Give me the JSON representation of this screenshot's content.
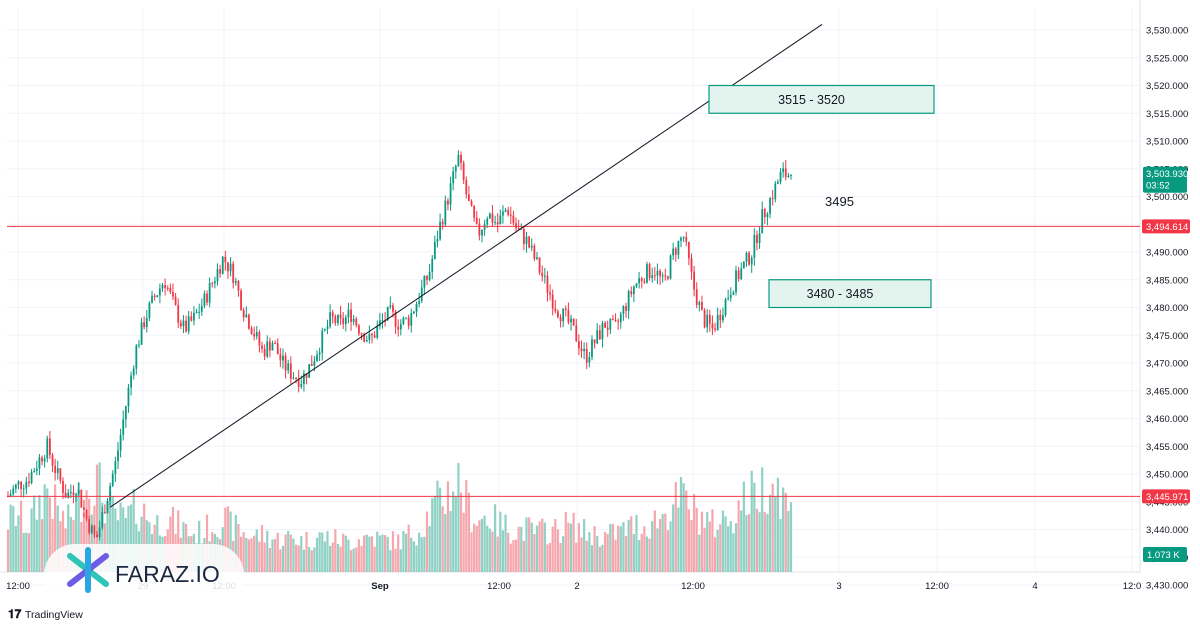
{
  "chart_data": {
    "type": "candlestick",
    "price_axis": {
      "ticks": [
        "3,530.000",
        "3,525.000",
        "3,520.000",
        "3,515.000",
        "3,510.000",
        "3,505.000",
        "3,500.000",
        "3,495.000",
        "3,490.000",
        "3,485.000",
        "3,480.000",
        "3,475.000",
        "3,470.000",
        "3,465.000",
        "3,460.000",
        "3,455.000",
        "3,450.000",
        "3,445.000",
        "3,440.000",
        "3,435.000",
        "3,430.000"
      ],
      "range": [
        3430,
        3532
      ]
    },
    "time_axis": {
      "ticks": [
        "12:00",
        "29",
        "12:00",
        "Sep",
        "12:00",
        "2",
        "12:00",
        "3",
        "12:00",
        "4",
        "12:0"
      ]
    },
    "current_price": {
      "value": "3,503.930",
      "countdown": "03:52",
      "color": "#089981"
    },
    "horizontal_lines": [
      {
        "value": 3494.614,
        "label": "3,494.614",
        "color": "#f23645"
      },
      {
        "value": 3445.971,
        "label": "3,445.971",
        "color": "#f23645"
      }
    ],
    "volume_label": {
      "value": "1.073 K",
      "color": "#089981"
    },
    "zones": [
      {
        "label": "3515 - 3520",
        "low": 3515,
        "high": 3520
      },
      {
        "label": "3480 - 3485",
        "low": 3480,
        "high": 3485
      }
    ],
    "annotation": {
      "text": "3495",
      "price": 3499
    },
    "trendline": {
      "from_price": 3444,
      "to_price": 3531
    },
    "price_path": [
      3446,
      3448,
      3449,
      3452,
      3455,
      3450,
      3446,
      3448,
      3442,
      3438,
      3445,
      3452,
      3462,
      3472,
      3478,
      3482,
      3485,
      3480,
      3476,
      3478,
      3481,
      3485,
      3489,
      3486,
      3480,
      3476,
      3472,
      3474,
      3470,
      3468,
      3467,
      3470,
      3474,
      3478,
      3477,
      3479,
      3476,
      3474,
      3477,
      3479,
      3477,
      3478,
      3482,
      3486,
      3494,
      3500,
      3507,
      3499,
      3493,
      3497,
      3495,
      3498,
      3494,
      3492,
      3488,
      3484,
      3480,
      3478,
      3475,
      3471,
      3474,
      3477,
      3476,
      3480,
      3484,
      3486,
      3487,
      3484,
      3490,
      3493,
      3484,
      3478,
      3476,
      3480,
      3484,
      3487,
      3490,
      3496,
      3500,
      3504,
      3503.93
    ],
    "volume_path": [
      0.55,
      0.62,
      0.48,
      0.7,
      0.9,
      0.66,
      0.5,
      0.74,
      0.88,
      1.0,
      0.72,
      0.6,
      0.55,
      0.68,
      0.62,
      0.5,
      0.58,
      0.52,
      0.46,
      0.4,
      0.44,
      0.5,
      0.56,
      0.48,
      0.42,
      0.38,
      0.4,
      0.36,
      0.34,
      0.38,
      0.33,
      0.35,
      0.38,
      0.36,
      0.34,
      0.32,
      0.36,
      0.38,
      0.35,
      0.34,
      0.33,
      0.4,
      0.45,
      0.62,
      0.75,
      0.85,
      0.98,
      0.7,
      0.55,
      0.6,
      0.52,
      0.48,
      0.44,
      0.46,
      0.42,
      0.45,
      0.44,
      0.5,
      0.48,
      0.42,
      0.4,
      0.38,
      0.42,
      0.45,
      0.5,
      0.48,
      0.55,
      0.6,
      0.72,
      0.8,
      0.65,
      0.58,
      0.5,
      0.55,
      0.6,
      0.75,
      0.82,
      0.9,
      1.0,
      0.85,
      0.62
    ]
  },
  "logo": {
    "text": "FARAZ.IO"
  },
  "branding": {
    "text": "TradingView"
  },
  "colors": {
    "up": "#089981",
    "down": "#f23645",
    "up_vol": "#8fd1c4",
    "down_vol": "#f5a7ad",
    "zone_fill": "#e3f4ef",
    "zone_stroke": "#089981"
  }
}
